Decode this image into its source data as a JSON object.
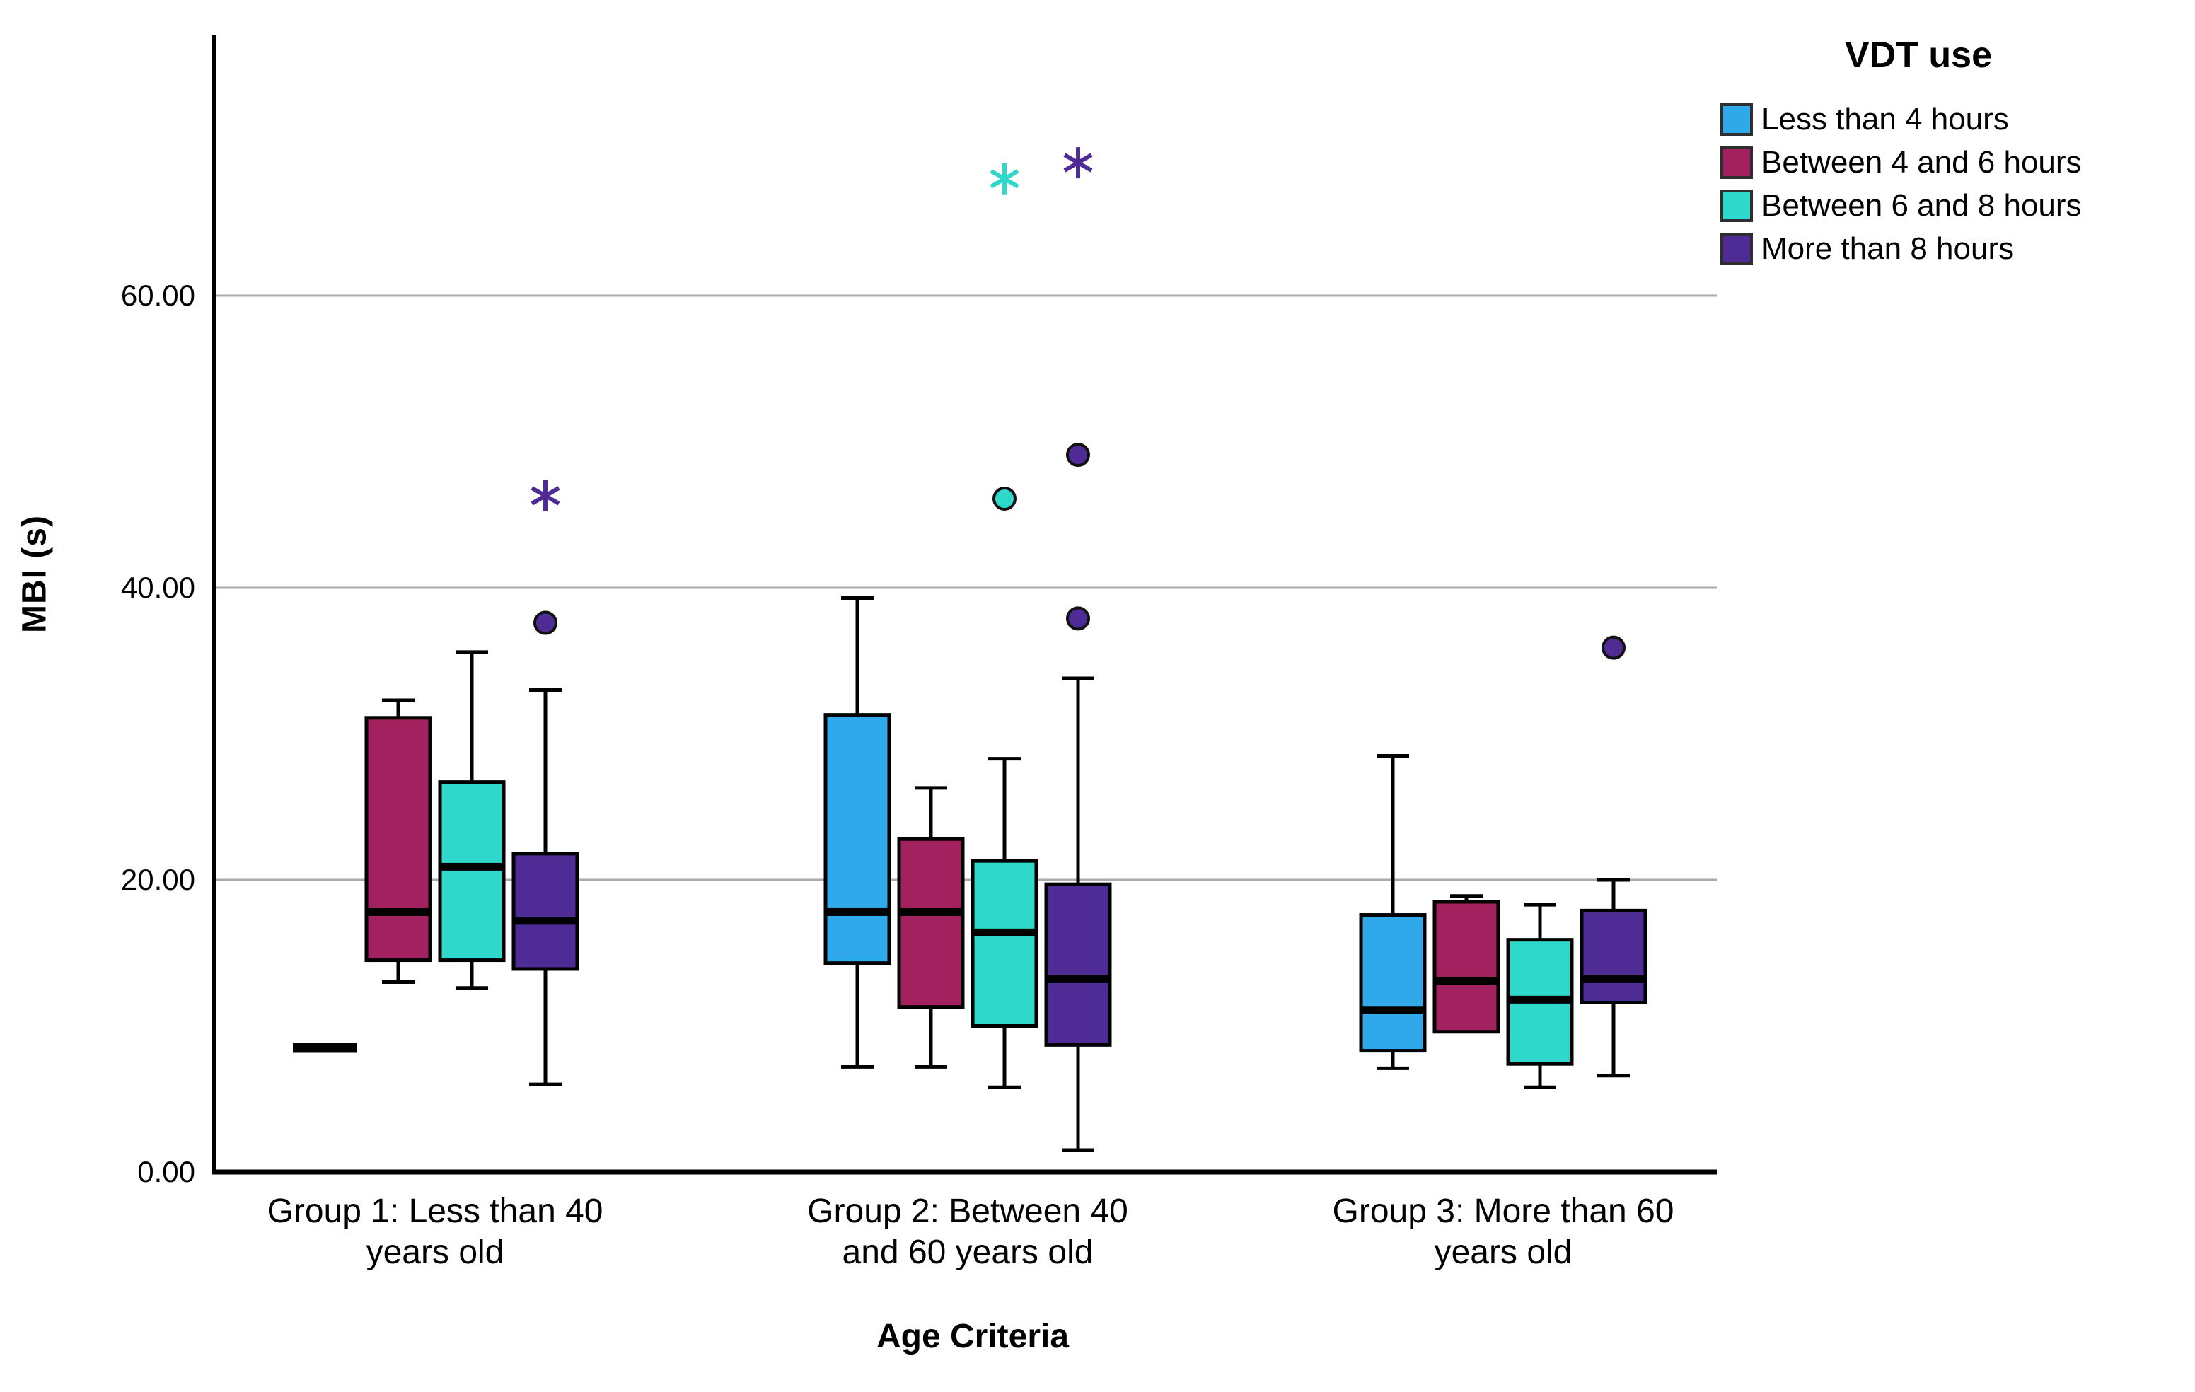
{
  "chart_data": {
    "type": "boxplot",
    "title": "",
    "xlabel": "Age Criteria",
    "ylabel": "MBI (s)",
    "ylim": [
      0,
      77.8
    ],
    "grid": "horizontal-only",
    "gridline_color": "#ABABAB",
    "axis_color": "#000000",
    "y_ticks": [
      "0.00",
      "20.00",
      "40.00",
      "60.00"
    ],
    "y_tick_values": [
      0,
      20,
      40,
      60
    ],
    "categories": [
      "Group 1: Less than 40 years old",
      "Group 2: Between 40 and 60 years old",
      "Group 3: More than 60 years old"
    ],
    "categories_lines": [
      {
        "line1": "Group 1: Less than 40",
        "line2": "years old"
      },
      {
        "line1": "Group 2: Between 40",
        "line2": "and 60 years old"
      },
      {
        "line1": "Group 3: More than 60",
        "line2": "years old"
      }
    ],
    "legend": {
      "title": "VDT use",
      "position": "top-right",
      "items": [
        {
          "label": "Less than 4 hours",
          "color": "#2FA9EA"
        },
        {
          "label": "Between 4 and 6 hours",
          "color": "#A42160"
        },
        {
          "label": "Between 6 and 8 hours",
          "color": "#2ED9CC"
        },
        {
          "label": "More than 8 hours",
          "color": "#4F2B96"
        }
      ]
    },
    "series": [
      {
        "name": "Less than 4 hours",
        "color": "#2FA9EA",
        "boxes": [
          {
            "group": 0,
            "median_only": true,
            "median": 8.5,
            "outliers": [],
            "extremes": []
          },
          {
            "group": 1,
            "whisker_low": 7.2,
            "q1": 14.3,
            "median": 17.8,
            "q3": 31.3,
            "whisker_high": 39.3,
            "outliers": [],
            "extremes": []
          },
          {
            "group": 2,
            "whisker_low": 7.1,
            "q1": 8.3,
            "median": 11.1,
            "q3": 17.6,
            "whisker_high": 28.5,
            "outliers": [],
            "extremes": []
          }
        ]
      },
      {
        "name": "Between 4 and 6 hours",
        "color": "#A42160",
        "boxes": [
          {
            "group": 0,
            "whisker_low": 13.0,
            "q1": 14.5,
            "median": 17.8,
            "q3": 31.1,
            "whisker_high": 32.3,
            "outliers": [],
            "extremes": []
          },
          {
            "group": 1,
            "whisker_low": 7.2,
            "q1": 11.3,
            "median": 17.8,
            "q3": 22.8,
            "whisker_high": 26.3,
            "outliers": [],
            "extremes": []
          },
          {
            "group": 2,
            "whisker_low": 9.6,
            "q1": 9.6,
            "median": 13.1,
            "q3": 18.5,
            "whisker_high": 18.9,
            "outliers": [],
            "extremes": []
          }
        ]
      },
      {
        "name": "Between 6 and 8 hours",
        "color": "#2ED9CC",
        "boxes": [
          {
            "group": 0,
            "whisker_low": 12.6,
            "q1": 14.5,
            "median": 20.9,
            "q3": 26.7,
            "whisker_high": 35.6,
            "outliers": [],
            "extremes": []
          },
          {
            "group": 1,
            "whisker_low": 5.8,
            "q1": 10.0,
            "median": 16.4,
            "q3": 21.3,
            "whisker_high": 28.3,
            "outliers": [
              46.1
            ],
            "extremes": [
              68.0
            ]
          },
          {
            "group": 2,
            "whisker_low": 5.8,
            "q1": 7.4,
            "median": 11.8,
            "q3": 15.9,
            "whisker_high": 18.3,
            "outliers": [],
            "extremes": []
          }
        ]
      },
      {
        "name": "More than 8 hours",
        "color": "#4F2B96",
        "boxes": [
          {
            "group": 0,
            "whisker_low": 6.0,
            "q1": 13.9,
            "median": 17.2,
            "q3": 21.8,
            "whisker_high": 33.0,
            "outliers": [
              37.6
            ],
            "extremes": [
              46.3
            ]
          },
          {
            "group": 1,
            "whisker_low": 1.5,
            "q1": 8.7,
            "median": 13.2,
            "q3": 19.7,
            "whisker_high": 33.8,
            "outliers": [
              37.9,
              49.1
            ],
            "extremes": [
              69.1
            ]
          },
          {
            "group": 2,
            "whisker_low": 6.6,
            "q1": 11.6,
            "median": 13.2,
            "q3": 17.9,
            "whisker_high": 20.0,
            "outliers": [
              35.9
            ],
            "extremes": []
          }
        ]
      }
    ]
  }
}
